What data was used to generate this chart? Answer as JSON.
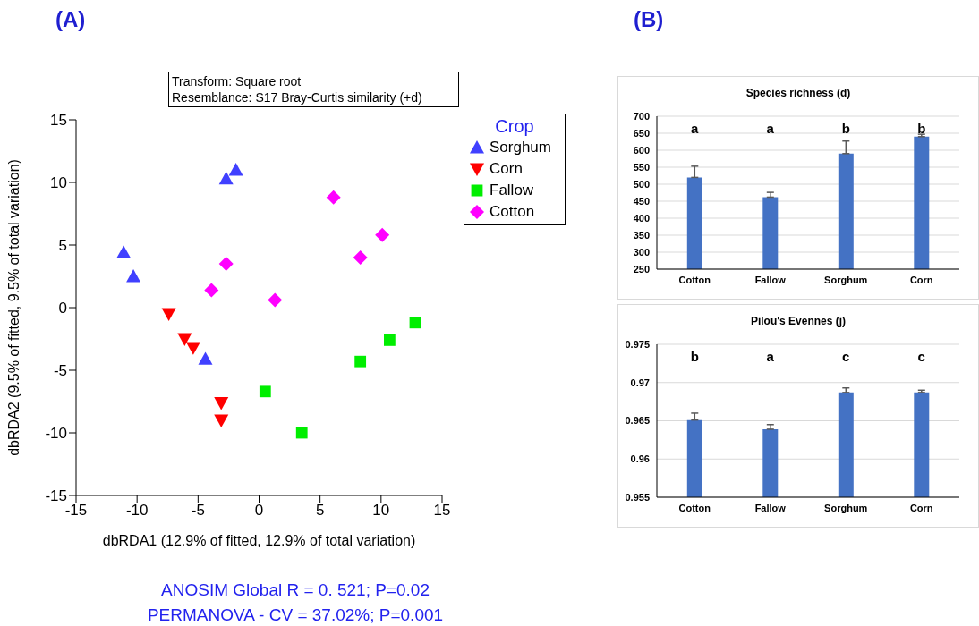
{
  "chart_data": [
    {
      "type": "scatter",
      "title": "(A)",
      "xlabel": "dbRDA1 (12.9% of fitted, 12.9% of total variation)",
      "ylabel": "dbRDA2 (9.5% of fitted, 9.5% of total variation)",
      "legend_title": "Crop",
      "legend": "top right",
      "xlim": [
        -15,
        15
      ],
      "xticks": [
        -15,
        -10,
        -5,
        0,
        5,
        10,
        15
      ],
      "ylim": [
        -15,
        15
      ],
      "yticks": [
        -15,
        -10,
        -5,
        0,
        5,
        10,
        15
      ],
      "annotations": [
        "Transform: Square root",
        "Resemblance:  S17 Bray-Curtis similarity (+d)",
        "ANOSIM Global R = 0. 521; P=0.02",
        "PERMANOVA - CV = 37.02%; P=0.001"
      ],
      "series": [
        {
          "name": "Sorghum",
          "color": "#4040ff",
          "marker": "triangle",
          "x": [
            -2.7,
            -1.9,
            -11.1,
            -10.3,
            -4.4
          ],
          "values": [
            10.3,
            11.0,
            4.4,
            2.5,
            -4.1
          ]
        },
        {
          "name": "Corn",
          "color": "#ff0000",
          "marker": "triangle-down",
          "x": [
            -7.4,
            -6.1,
            -5.4,
            -3.1,
            -3.1
          ],
          "values": [
            -0.5,
            -2.5,
            -3.2,
            -7.6,
            -9.0
          ]
        },
        {
          "name": "Fallow",
          "color": "#00ee00",
          "marker": "square",
          "x": [
            0.5,
            3.5,
            8.3,
            10.7,
            12.8
          ],
          "values": [
            -6.7,
            -10.0,
            -4.3,
            -2.6,
            -1.2
          ]
        },
        {
          "name": "Cotton",
          "color": "#ff00ff",
          "marker": "diamond",
          "x": [
            6.1,
            10.1,
            8.3,
            -2.7,
            -3.9,
            1.3
          ],
          "values": [
            8.8,
            5.8,
            4.0,
            3.5,
            1.4,
            0.6
          ]
        }
      ]
    },
    {
      "type": "bar",
      "title": "Species richness (d)",
      "categories": [
        "Cotton",
        "Fallow",
        "Sorghum",
        "Corn"
      ],
      "values": [
        520,
        462,
        590,
        640
      ],
      "errors": [
        [
          520,
          553
        ],
        [
          462,
          476
        ],
        [
          590,
          627
        ],
        [
          640,
          647
        ]
      ],
      "color": "#4472c4",
      "ylim": [
        250,
        700
      ],
      "yticks": [
        250,
        300,
        350,
        400,
        450,
        500,
        550,
        600,
        650,
        700
      ],
      "grid": "y",
      "annotations": [
        "(B)",
        "a",
        "a",
        "b",
        "b"
      ]
    },
    {
      "type": "bar",
      "title": "Pilou's Evennes (j)",
      "categories": [
        "Cotton",
        "Fallow",
        "Sorghum",
        "Corn"
      ],
      "values": [
        0.9651,
        0.9639,
        0.9687,
        0.9687
      ],
      "errors": [
        [
          0.9651,
          0.966
        ],
        [
          0.9639,
          0.9645
        ],
        [
          0.9687,
          0.9693
        ],
        [
          0.9687,
          0.969
        ]
      ],
      "color": "#4472c4",
      "ylim": [
        0.955,
        0.975
      ],
      "yticks": [
        0.955,
        0.96,
        0.965,
        0.97,
        0.975
      ],
      "grid": "y",
      "annotations": [
        "b",
        "a",
        "c",
        "c"
      ]
    }
  ]
}
